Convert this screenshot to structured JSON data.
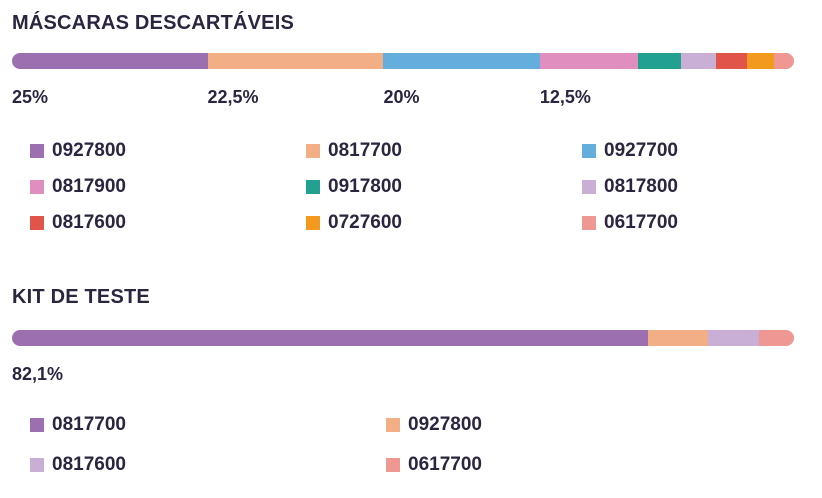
{
  "chart_data": [
    {
      "type": "stacked-bar",
      "title": "MÁSCARAS DESCARTÁVEIS",
      "series": [
        {
          "name": "0927800",
          "value": 25,
          "label": "25%",
          "color": "#9b6fb0"
        },
        {
          "name": "0817700",
          "value": 22.5,
          "label": "22,5%",
          "color": "#f2ae84"
        },
        {
          "name": "0927700",
          "value": 20,
          "label": "20%",
          "color": "#63aedd"
        },
        {
          "name": "0817900",
          "value": 12.5,
          "label": "12,5%",
          "color": "#e08dbf"
        },
        {
          "name": "0917800",
          "value": 5.6,
          "label": "",
          "color": "#22a090"
        },
        {
          "name": "0817800",
          "value": 4.4,
          "label": "",
          "color": "#c9aed6"
        },
        {
          "name": "0817600",
          "value": 4,
          "label": "",
          "color": "#e0544a"
        },
        {
          "name": "0727600",
          "value": 3.4,
          "label": "",
          "color": "#f39a1e"
        },
        {
          "name": "0617700",
          "value": 2.6,
          "label": "",
          "color": "#ee9793"
        }
      ],
      "legend_columns": 3
    },
    {
      "type": "stacked-bar",
      "title": "KIT DE TESTE",
      "series": [
        {
          "name": "0817700",
          "value": 82.1,
          "label": "82,1%",
          "color": "#9b6fb0"
        },
        {
          "name": "0927800",
          "value": 7.8,
          "label": "",
          "color": "#f2ae84"
        },
        {
          "name": "0817600",
          "value": 6.6,
          "label": "",
          "color": "#c9aed6"
        },
        {
          "name": "0617700",
          "value": 4.5,
          "label": "",
          "color": "#ee9793"
        }
      ],
      "legend_columns": 2
    }
  ]
}
